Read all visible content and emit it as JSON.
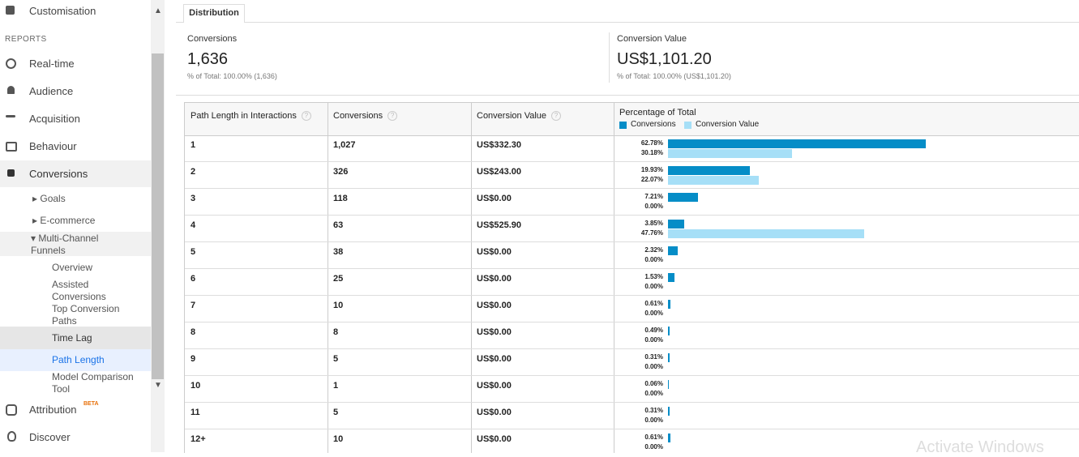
{
  "sidebar": {
    "customisation": "Customisation",
    "section": "REPORTS",
    "items": [
      "Real-time",
      "Audience",
      "Acquisition",
      "Behaviour",
      "Conversions"
    ],
    "sub": [
      "Goals",
      "E-commerce",
      "Multi-Channel Funnels"
    ],
    "funnels": [
      "Overview",
      "Assisted Conversions",
      "Top Conversion Paths",
      "Time Lag",
      "Path Length",
      "Model Comparison Tool"
    ],
    "attribution": "Attribution",
    "beta": "BETA",
    "discover": "Discover"
  },
  "tab": "Distribution",
  "summary": [
    {
      "label": "Conversions",
      "value": "1,636",
      "total": "% of Total: 100.00% (1,636)"
    },
    {
      "label": "Conversion Value",
      "value": "US$1,101.20",
      "total": "% of Total: 100.00% (US$1,101.20)"
    }
  ],
  "table": {
    "headers": [
      "Path Length in Interactions",
      "Conversions",
      "Conversion Value",
      "Percentage of Total"
    ],
    "legend": [
      {
        "name": "Conversions",
        "color": "#058dc7"
      },
      {
        "name": "Conversion Value",
        "color": "#a6dff7"
      }
    ],
    "rows": [
      {
        "path_length": "1",
        "conversions": "1,027",
        "value": "US$332.30",
        "conv_pct": {
          "value": 62.78,
          "label": "62.78%"
        },
        "value_pct": {
          "value": 30.18,
          "label": "30.18%"
        }
      },
      {
        "path_length": "2",
        "conversions": "326",
        "value": "US$243.00",
        "conv_pct": {
          "value": 19.93,
          "label": "19.93%"
        },
        "value_pct": {
          "value": 22.07,
          "label": "22.07%"
        }
      },
      {
        "path_length": "3",
        "conversions": "118",
        "value": "US$0.00",
        "conv_pct": {
          "value": 7.21,
          "label": "7.21%"
        },
        "value_pct": {
          "value": 0,
          "label": "0.00%"
        }
      },
      {
        "path_length": "4",
        "conversions": "63",
        "value": "US$525.90",
        "conv_pct": {
          "value": 3.85,
          "label": "3.85%"
        },
        "value_pct": {
          "value": 47.76,
          "label": "47.76%"
        }
      },
      {
        "path_length": "5",
        "conversions": "38",
        "value": "US$0.00",
        "conv_pct": {
          "value": 2.32,
          "label": "2.32%"
        },
        "value_pct": {
          "value": 0,
          "label": "0.00%"
        }
      },
      {
        "path_length": "6",
        "conversions": "25",
        "value": "US$0.00",
        "conv_pct": {
          "value": 1.53,
          "label": "1.53%"
        },
        "value_pct": {
          "value": 0,
          "label": "0.00%"
        }
      },
      {
        "path_length": "7",
        "conversions": "10",
        "value": "US$0.00",
        "conv_pct": {
          "value": 0.61,
          "label": "0.61%"
        },
        "value_pct": {
          "value": 0,
          "label": "0.00%"
        }
      },
      {
        "path_length": "8",
        "conversions": "8",
        "value": "US$0.00",
        "conv_pct": {
          "value": 0.49,
          "label": "0.49%"
        },
        "value_pct": {
          "value": 0,
          "label": "0.00%"
        }
      },
      {
        "path_length": "9",
        "conversions": "5",
        "value": "US$0.00",
        "conv_pct": {
          "value": 0.31,
          "label": "0.31%"
        },
        "value_pct": {
          "value": 0,
          "label": "0.00%"
        }
      },
      {
        "path_length": "10",
        "conversions": "1",
        "value": "US$0.00",
        "conv_pct": {
          "value": 0.06,
          "label": "0.06%"
        },
        "value_pct": {
          "value": 0,
          "label": "0.00%"
        }
      },
      {
        "path_length": "11",
        "conversions": "5",
        "value": "US$0.00",
        "conv_pct": {
          "value": 0.31,
          "label": "0.31%"
        },
        "value_pct": {
          "value": 0,
          "label": "0.00%"
        }
      },
      {
        "path_length": "12+",
        "conversions": "10",
        "value": "US$0.00",
        "conv_pct": {
          "value": 0.61,
          "label": "0.61%"
        },
        "value_pct": {
          "value": 0,
          "label": "0.00%"
        }
      }
    ]
  },
  "watermark": "Activate Windows"
}
